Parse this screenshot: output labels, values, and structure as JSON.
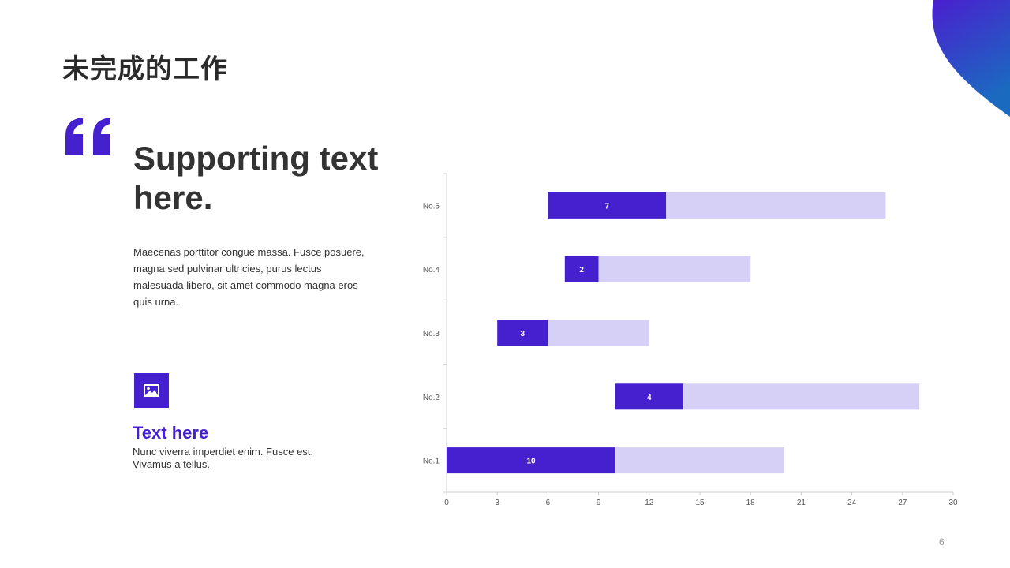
{
  "slide": {
    "title": "未完成的工作",
    "headline": "Supporting text here.",
    "body": "Maecenas porttitor congue massa. Fusce posuere, magna sed pulvinar ultricies, purus lectus malesuada libero, sit amet commodo magna eros quis urna.",
    "sub_title": "Text here",
    "sub_text": "Nunc viverra imperdiet enim. Fusce est. Vivamus a tellus.",
    "page_number": "6"
  },
  "icons": {
    "quote": "quote-icon",
    "image": "image-icon",
    "corner": "corner-blob-decoration"
  },
  "colors": {
    "accent": "#4520cf",
    "accent_light": "#d6cff6",
    "blob_top": "#4a1fcf",
    "blob_bottom": "#1a6bc0",
    "text": "#333333"
  },
  "chart_data": {
    "type": "bar",
    "orientation": "horizontal",
    "stacked": true,
    "categories": [
      "No.1",
      "No.2",
      "No.3",
      "No.4",
      "No.5"
    ],
    "series": [
      {
        "values": [
          0,
          10,
          3,
          7,
          6
        ],
        "invisible": true
      },
      {
        "values": [
          10,
          4,
          3,
          2,
          7
        ],
        "color": "#4520cf",
        "data_labels": true
      },
      {
        "values": [
          10,
          14,
          6,
          9,
          13
        ],
        "color": "#d6cff6"
      }
    ],
    "xlim": [
      0,
      30
    ],
    "xticks": [
      "0",
      "3",
      "6",
      "9",
      "12",
      "15",
      "18",
      "21",
      "24",
      "27",
      "30"
    ],
    "grid": false,
    "legend": "none"
  }
}
